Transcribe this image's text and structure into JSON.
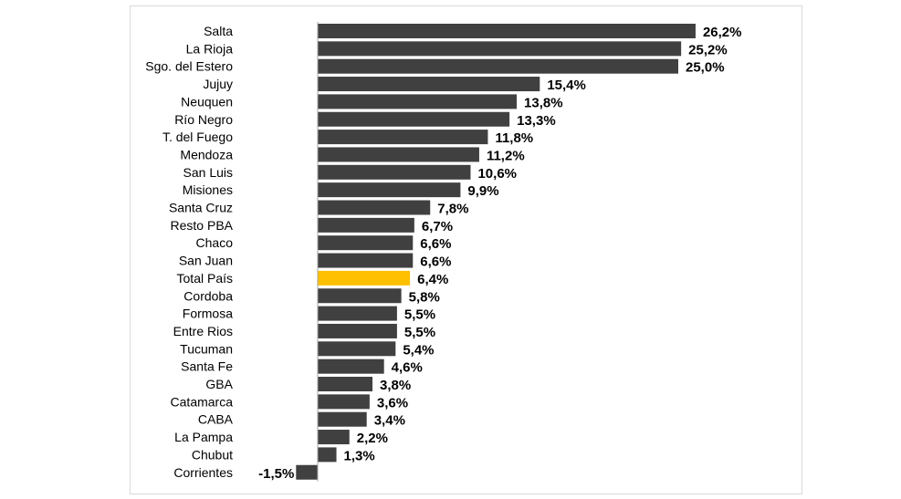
{
  "chart_data": {
    "type": "bar",
    "orientation": "horizontal",
    "categories": [
      "Salta",
      "La Rioja",
      "Sgo. del Estero",
      "Jujuy",
      "Neuquen",
      "Río Negro",
      "T. del Fuego",
      "Mendoza",
      "San Luis",
      "Misiones",
      "Santa Cruz",
      "Resto PBA",
      "Chaco",
      "San Juan",
      "Total País",
      "Cordoba",
      "Formosa",
      "Entre Rios",
      "Tucuman",
      "Santa Fe",
      "GBA",
      "Catamarca",
      "CABA",
      "La Pampa",
      "Chubut",
      "Corrientes"
    ],
    "values": [
      26.2,
      25.2,
      25.0,
      15.4,
      13.8,
      13.3,
      11.8,
      11.2,
      10.6,
      9.9,
      7.8,
      6.7,
      6.6,
      6.6,
      6.4,
      5.8,
      5.5,
      5.5,
      5.4,
      4.6,
      3.8,
      3.6,
      3.4,
      2.2,
      1.3,
      -1.5
    ],
    "value_labels": [
      "26,2%",
      "25,2%",
      "25,0%",
      "15,4%",
      "13,8%",
      "13,3%",
      "11,8%",
      "11,2%",
      "10,6%",
      "9,9%",
      "7,8%",
      "6,7%",
      "6,6%",
      "6,6%",
      "6,4%",
      "5,8%",
      "5,5%",
      "5,5%",
      "5,4%",
      "4,6%",
      "3,8%",
      "3,6%",
      "3,4%",
      "2,2%",
      "1,3%",
      "-1,5%"
    ],
    "title": "",
    "xlabel": "",
    "ylabel": "",
    "xlim": [
      -1.5,
      26.2
    ],
    "grid": false,
    "legend": false,
    "highlight_category": "Total País",
    "colors": {
      "bar": "#404040",
      "highlight": "#ffc000",
      "axis": "#a6a6a6",
      "border": "#d9d9d9"
    }
  }
}
